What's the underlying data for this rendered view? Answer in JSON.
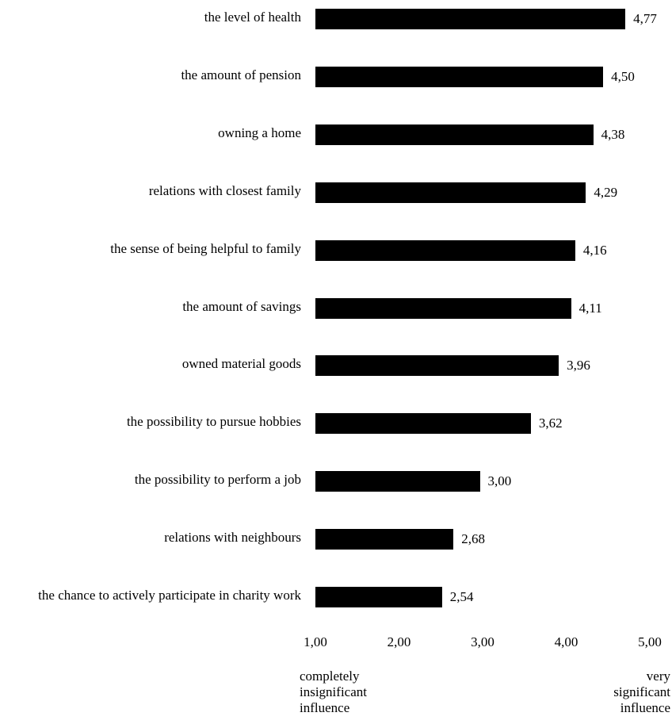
{
  "chart_data": {
    "type": "bar",
    "orientation": "horizontal",
    "categories": [
      "the level of health",
      "the amount of pension",
      "owning a home",
      "relations with closest family",
      "the sense of being helpful to family",
      "the amount of savings",
      "owned material goods",
      "the possibility to pursue hobbies",
      "the possibility to perform a job",
      "relations with neighbours",
      "the chance to actively participate in charity work"
    ],
    "values": [
      4.77,
      4.5,
      4.38,
      4.29,
      4.16,
      4.11,
      3.96,
      3.62,
      3.0,
      2.68,
      2.54
    ],
    "value_labels": [
      "4,77",
      "4,50",
      "4,38",
      "4,29",
      "4,16",
      "4,11",
      "3,96",
      "3,62",
      "3,00",
      "2,68",
      "2,54"
    ],
    "xlim": [
      1.0,
      5.0
    ],
    "x_ticks": [
      1,
      2,
      3,
      4,
      5
    ],
    "x_tick_labels": [
      "1,00",
      "2,00",
      "3,00",
      "4,00",
      "5,00"
    ],
    "scale_min_label": "completely insignificant influence",
    "scale_max_label": "very significant influence",
    "bar_color": "#000000",
    "grid": false
  }
}
